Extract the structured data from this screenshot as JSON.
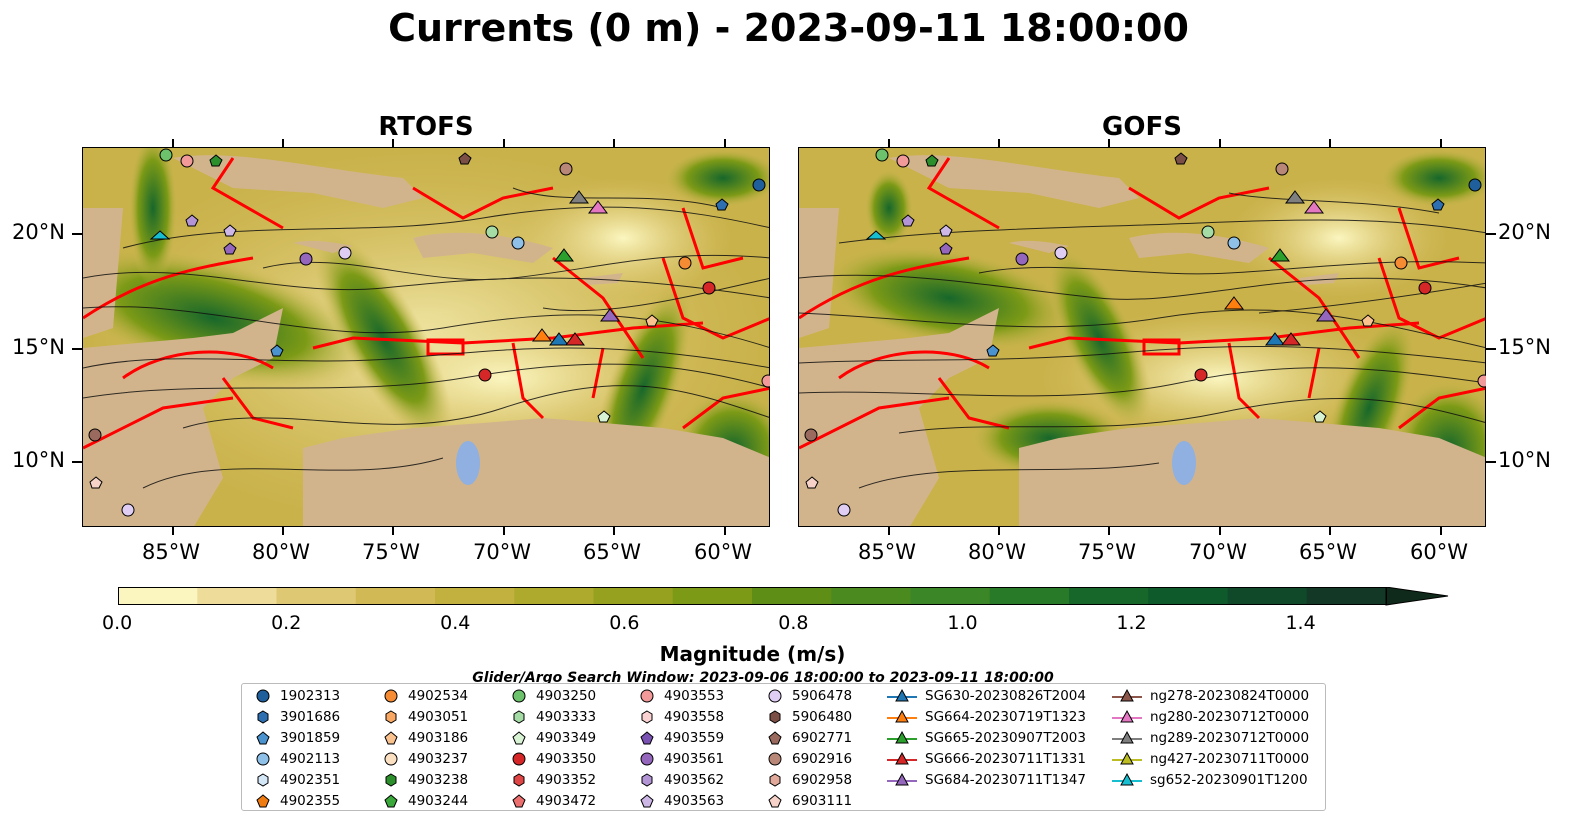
{
  "title": "Currents (0 m) - 2023-09-11 18:00:00",
  "panels": [
    {
      "title": "RTOFS"
    },
    {
      "title": "GOFS"
    }
  ],
  "axes": {
    "lon_ticks": [
      "85°W",
      "80°W",
      "75°W",
      "70°W",
      "65°W",
      "60°W"
    ],
    "lat_ticks": [
      "20°N",
      "15°N",
      "10°N"
    ]
  },
  "colorbar": {
    "label": "Magnitude (m/s)",
    "ticks": [
      "0.0",
      "0.2",
      "0.4",
      "0.6",
      "0.8",
      "1.0",
      "1.2",
      "1.4"
    ],
    "colors": [
      "#fbf6c0",
      "#eedd9a",
      "#dfc873",
      "#d1b955",
      "#c3b13f",
      "#aeaa2e",
      "#95a11f",
      "#7c9a16",
      "#5f8e16",
      "#4b8a1f",
      "#3b8626",
      "#297a28",
      "#17672b",
      "#0f5a2a",
      "#10492a",
      "#133826"
    ]
  },
  "legend": {
    "title": "Glider/Argo Search Window: 2023-09-06 18:00:00 to 2023-09-11 18:00:00",
    "columns": [
      [
        {
          "label": "1902313",
          "marker": "circle",
          "color": "#1f5f9c"
        },
        {
          "label": "3901686",
          "marker": "hexagon",
          "color": "#2d6fb0"
        },
        {
          "label": "3901859",
          "marker": "pentagon",
          "color": "#4a93cf"
        },
        {
          "label": "4902113",
          "marker": "circle",
          "color": "#8ec0e8"
        },
        {
          "label": "4902351",
          "marker": "hexagon",
          "color": "#d3e7f7"
        },
        {
          "label": "4902355",
          "marker": "pentagon",
          "color": "#f07c11"
        }
      ],
      [
        {
          "label": "4902534",
          "marker": "circle",
          "color": "#f58b33"
        },
        {
          "label": "4903051",
          "marker": "hexagon",
          "color": "#f8a862"
        },
        {
          "label": "4903186",
          "marker": "pentagon",
          "color": "#f9c28f"
        },
        {
          "label": "4903237",
          "marker": "circle",
          "color": "#fbe0c2"
        },
        {
          "label": "4903238",
          "marker": "hexagon",
          "color": "#2b8f2b"
        },
        {
          "label": "4903244",
          "marker": "pentagon",
          "color": "#3aa83a"
        }
      ],
      [
        {
          "label": "4903250",
          "marker": "circle",
          "color": "#6cc36c"
        },
        {
          "label": "4903333",
          "marker": "hexagon",
          "color": "#a5dca5"
        },
        {
          "label": "4903349",
          "marker": "pentagon",
          "color": "#d8f2d4"
        },
        {
          "label": "4903350",
          "marker": "circle",
          "color": "#d62728"
        },
        {
          "label": "4903352",
          "marker": "hexagon",
          "color": "#e04545"
        },
        {
          "label": "4903472",
          "marker": "pentagon",
          "color": "#ec6f6f"
        }
      ],
      [
        {
          "label": "4903553",
          "marker": "circle",
          "color": "#f29a9a"
        },
        {
          "label": "4903558",
          "marker": "hexagon",
          "color": "#fbd2d2"
        },
        {
          "label": "4903559",
          "marker": "pentagon",
          "color": "#7a52b3"
        },
        {
          "label": "4903561",
          "marker": "circle",
          "color": "#9467bd"
        },
        {
          "label": "4903562",
          "marker": "hexagon",
          "color": "#b395d6"
        },
        {
          "label": "4903563",
          "marker": "pentagon",
          "color": "#cdb7e6"
        }
      ],
      [
        {
          "label": "5906478",
          "marker": "circle",
          "color": "#e0cdf4"
        },
        {
          "label": "5906480",
          "marker": "hexagon",
          "color": "#7b4f45"
        },
        {
          "label": "6902771",
          "marker": "pentagon",
          "color": "#9a6a5e"
        },
        {
          "label": "6902916",
          "marker": "circle",
          "color": "#b88778"
        },
        {
          "label": "6902958",
          "marker": "hexagon",
          "color": "#e0a99a"
        },
        {
          "label": "6903111",
          "marker": "pentagon",
          "color": "#f6d2c8"
        }
      ],
      [
        {
          "label": "SG630-20230826T2004",
          "marker": "triangle",
          "color": "#1f77b4"
        },
        {
          "label": "SG664-20230719T1323",
          "marker": "triangle",
          "color": "#ff7f0e"
        },
        {
          "label": "SG665-20230907T2003",
          "marker": "triangle",
          "color": "#2ca02c"
        },
        {
          "label": "SG666-20230711T1331",
          "marker": "triangle",
          "color": "#d62728"
        },
        {
          "label": "SG684-20230711T1347",
          "marker": "triangle",
          "color": "#9467bd"
        }
      ],
      [
        {
          "label": "ng278-20230824T0000",
          "marker": "triangle",
          "color": "#8c564b"
        },
        {
          "label": "ng280-20230712T0000",
          "marker": "triangle",
          "color": "#e377c2"
        },
        {
          "label": "ng289-20230712T0000",
          "marker": "triangle",
          "color": "#7f7f7f"
        },
        {
          "label": "ng427-20230711T0000",
          "marker": "triangle",
          "color": "#bcbd22"
        },
        {
          "label": "sg652-20230901T1200",
          "marker": "triangle",
          "color": "#17becf"
        }
      ]
    ]
  }
}
